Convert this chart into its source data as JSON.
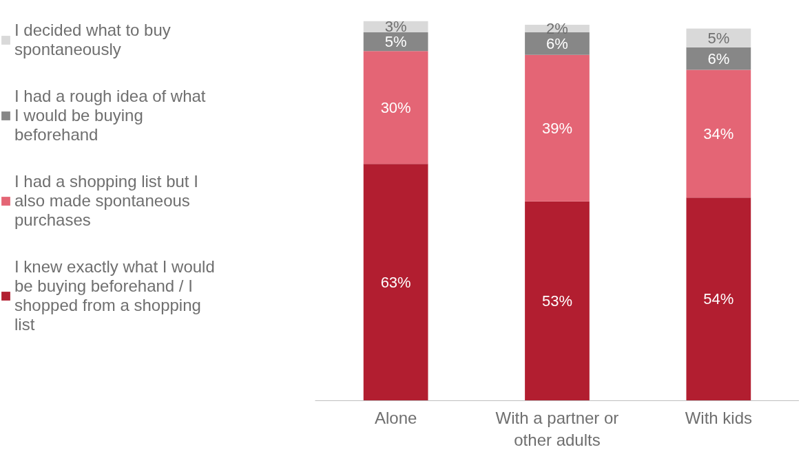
{
  "chart_data": {
    "type": "bar",
    "stacked": true,
    "legend": "left",
    "grid": false,
    "categories": [
      "Alone",
      "With a partner or other adults",
      "With kids"
    ],
    "series": [
      {
        "name": "I knew exactly what I would be buying beforehand / I shopped from a shopping list",
        "color": "#b21e30",
        "values": [
          63,
          53,
          54
        ],
        "value_labels": [
          "63%",
          "53%",
          "54%"
        ]
      },
      {
        "name": "I had a shopping list but I also made spontaneous purchases",
        "color": "#e46575",
        "values": [
          30,
          39,
          34
        ],
        "value_labels": [
          "30%",
          "39%",
          "34%"
        ]
      },
      {
        "name": "I had a rough idea of what I would be buying beforehand",
        "color": "#878787",
        "values": [
          5,
          6,
          6
        ],
        "value_labels": [
          "5%",
          "6%",
          "6%"
        ]
      },
      {
        "name": "I decided what to buy spontaneously",
        "color": "#d9d9d9",
        "values": [
          3,
          2,
          5
        ],
        "value_labels": [
          "3%",
          "2%",
          "5%"
        ]
      }
    ]
  }
}
